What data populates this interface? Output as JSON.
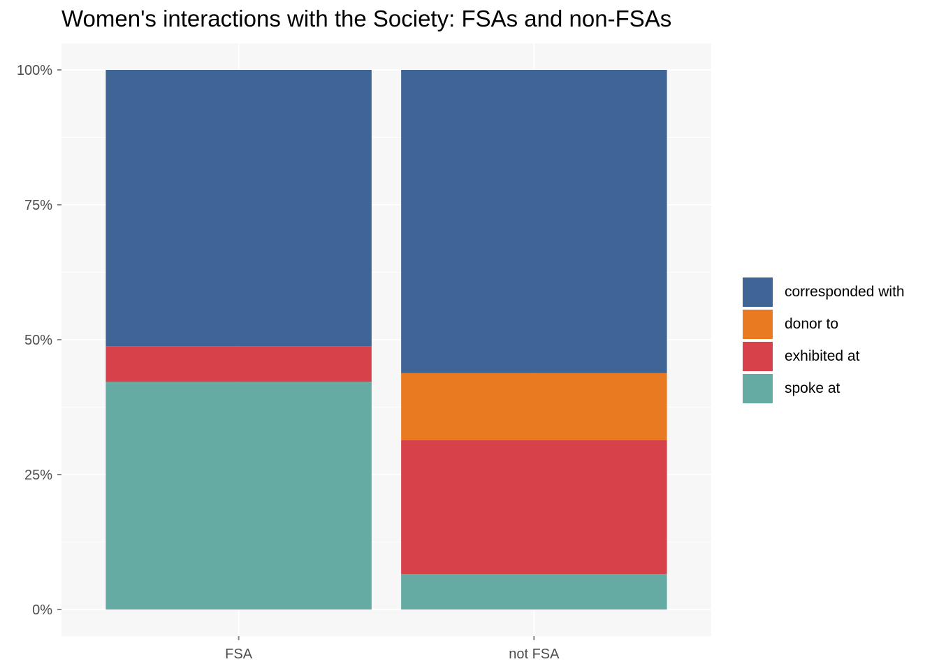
{
  "chart_data": {
    "type": "bar",
    "stacked": true,
    "normalized": true,
    "title": "Women's interactions with the Society: FSAs and non-FSAs",
    "xlabel": "",
    "ylabel": "",
    "ylim": [
      0,
      1
    ],
    "y_ticks": [
      0,
      0.25,
      0.5,
      0.75,
      1
    ],
    "y_tick_labels": [
      "0%",
      "25%",
      "50%",
      "75%",
      "100%"
    ],
    "categories": [
      "FSA",
      "not FSA"
    ],
    "series": [
      {
        "name": "spoke at",
        "color": "#65aaa3",
        "values": [
          0.422,
          0.066
        ]
      },
      {
        "name": "exhibited at",
        "color": "#d7414a",
        "values": [
          0.066,
          0.248
        ]
      },
      {
        "name": "donor to",
        "color": "#ea7a22",
        "values": [
          0,
          0.124
        ]
      },
      {
        "name": "corresponded with",
        "color": "#3f6496",
        "values": [
          0.512,
          0.562
        ]
      }
    ],
    "legend_order": [
      "corresponded with",
      "donor to",
      "exhibited at",
      "spoke at"
    ],
    "legend_position": "right",
    "grid": true,
    "panel_background": "#f7f7f7"
  }
}
